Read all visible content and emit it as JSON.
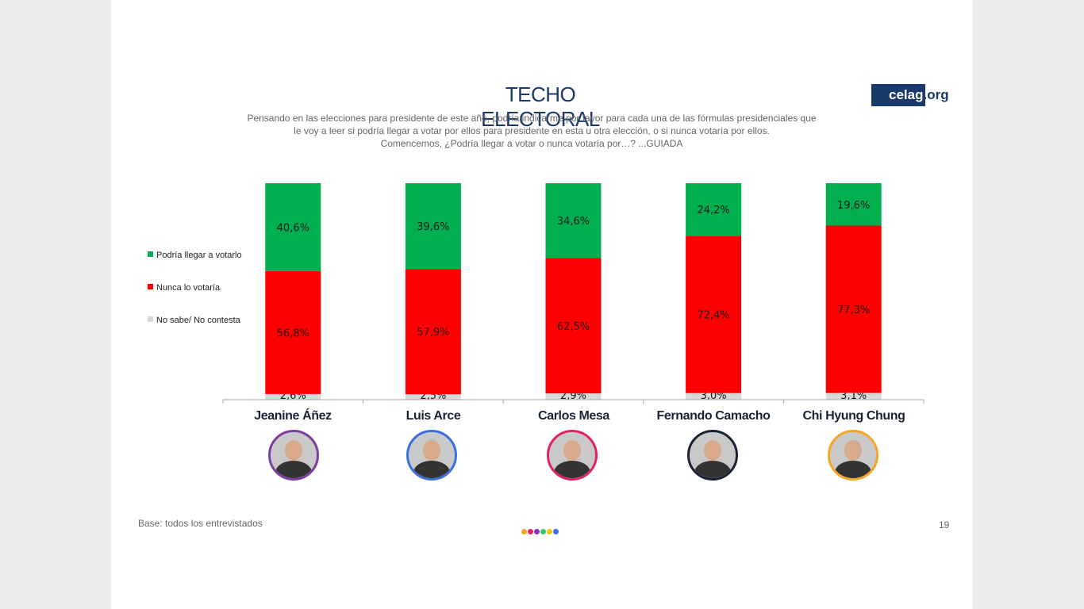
{
  "title": "TECHO ELECTORAL",
  "subtitle": [
    "Pensando en las elecciones para presidente de este año, podría indicarme por favor para cada una de las fórmulas presidenciales que",
    "le voy a leer si podría llegar a votar por ellos para presidente en esta u otra elección, o si nunca votaría por ellos.",
    "Comencemos, ¿Podría llegar a votar o nunca votaría por…? ...GUIADA"
  ],
  "logo": {
    "main": "celag",
    "suffix": ".org"
  },
  "footnote": "Base: todos los entrevistados",
  "page_number": "19",
  "colors": {
    "podria": "#00b050",
    "nunca": "#ff0000",
    "nosabe": "#d9d9d9",
    "title": "#1a3a6b",
    "dots": [
      "#f5a623",
      "#e0245e",
      "#8b2fc9",
      "#2ecc71",
      "#f1c40f",
      "#3b6fe0"
    ]
  },
  "candidates": [
    {
      "name": "Jeanine Áñez",
      "avatar_border": "#7b3fa0"
    },
    {
      "name": "Luis Arce",
      "avatar_border": "#3b6fe0"
    },
    {
      "name": "Carlos Mesa",
      "avatar_border": "#e0245e"
    },
    {
      "name": "Fernando Camacho",
      "avatar_border": "#1a2238"
    },
    {
      "name": "Chi Hyung Chung",
      "avatar_border": "#f5a623"
    }
  ],
  "chart_data": {
    "type": "bar",
    "stacked": true,
    "percent": true,
    "categories": [
      "Jeanine Áñez",
      "Luis Arce",
      "Carlos Mesa",
      "Fernando Camacho",
      "Chi Hyung Chung"
    ],
    "series": [
      {
        "name": "No sabe/ No contesta",
        "values": [
          2.6,
          2.5,
          2.9,
          3.0,
          3.1
        ],
        "labels": [
          "2,6%",
          "2,5%",
          "2,9%",
          "3,0%",
          "3,1%"
        ]
      },
      {
        "name": "Nunca lo votaría",
        "values": [
          56.8,
          57.9,
          62.5,
          72.4,
          77.3
        ],
        "labels": [
          "56,8%",
          "57,9%",
          "62,5%",
          "72,4%",
          "77,3%"
        ]
      },
      {
        "name": "Podría llegar a votarlo",
        "values": [
          40.6,
          39.6,
          34.6,
          24.2,
          19.6
        ],
        "labels": [
          "40,6%",
          "39,6%",
          "34,6%",
          "24,2%",
          "19,6%"
        ]
      }
    ],
    "legend": [
      {
        "name": "Podría llegar a votarlo",
        "color": "#00b050"
      },
      {
        "name": "Nunca lo votaría",
        "color": "#ff0000"
      },
      {
        "name": "No sabe/ No contesta",
        "color": "#d9d9d9"
      }
    ],
    "legend_position": "left",
    "ylim": [
      0,
      100
    ],
    "grid": false
  }
}
